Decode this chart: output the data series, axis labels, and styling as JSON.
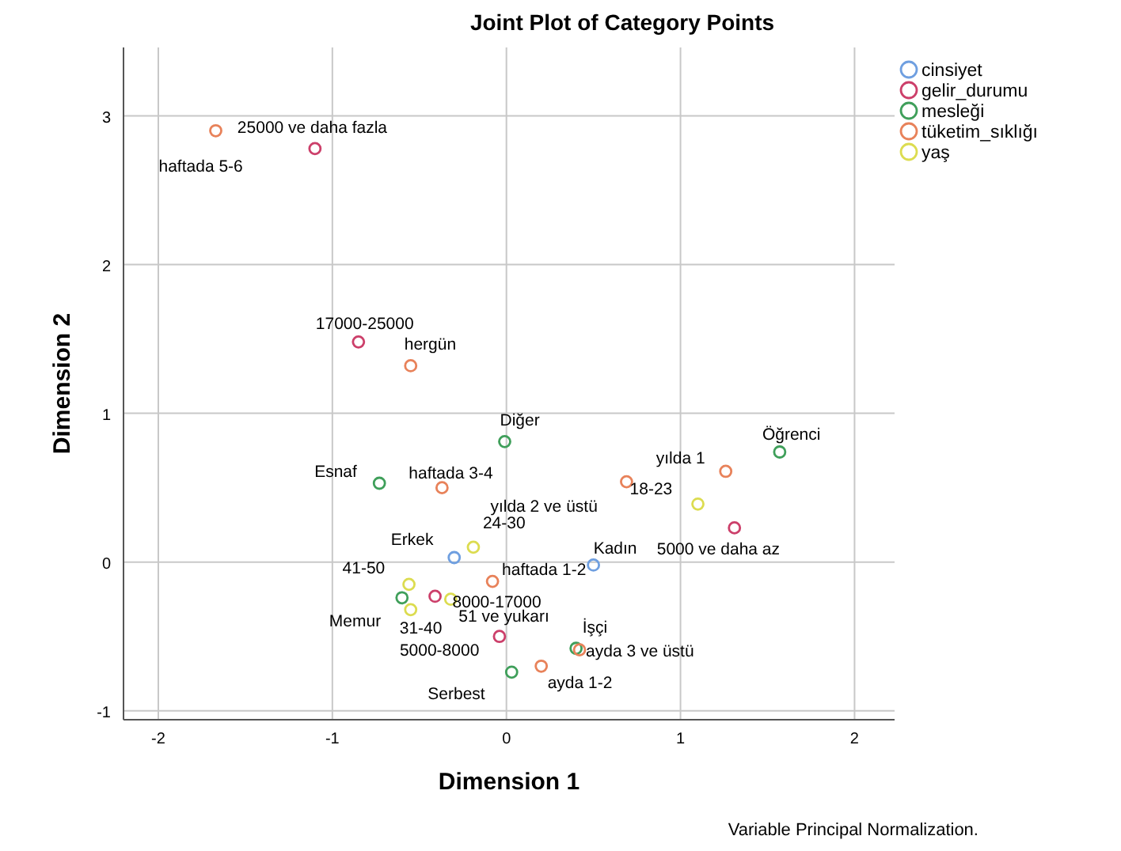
{
  "chart_data": {
    "type": "scatter",
    "title": "Joint Plot of Category Points",
    "xlabel": "Dimension 1",
    "ylabel": "Dimension 2",
    "xlim": [
      -2.2,
      2.23
    ],
    "ylim": [
      -1.06,
      3.46
    ],
    "xticks": [
      -2,
      -1,
      0,
      1,
      2
    ],
    "yticks": [
      -1,
      0,
      1,
      2,
      3
    ],
    "grid": true,
    "legend": "top right",
    "marker": "circle",
    "series": [
      {
        "name": "cinsiyet",
        "color": "#6f9fe0",
        "x": [
          -0.3,
          0.5
        ],
        "values": [
          0.03,
          -0.02
        ]
      },
      {
        "name": "gelir_durumu",
        "color": "#cc3f6a",
        "x": [
          -1.1,
          -0.85,
          1.31,
          -0.41,
          -0.04
        ],
        "values": [
          2.78,
          1.48,
          0.23,
          -0.23,
          -0.5
        ]
      },
      {
        "name": "mesleği",
        "color": "#3f9f5a",
        "x": [
          -0.01,
          -0.73,
          1.57,
          -0.6,
          0.4,
          0.03
        ],
        "values": [
          0.81,
          0.53,
          0.74,
          -0.24,
          -0.58,
          -0.74
        ]
      },
      {
        "name": "tüketim_sıklığı",
        "color": "#e8825a",
        "x": [
          -1.67,
          -0.55,
          -0.37,
          0.69,
          1.26,
          -0.08,
          0.42,
          0.2
        ],
        "values": [
          2.9,
          1.32,
          0.5,
          0.54,
          0.61,
          -0.13,
          -0.59,
          -0.7
        ]
      },
      {
        "name": "yaş",
        "color": "#dcdc50",
        "x": [
          1.1,
          -0.19,
          -0.56,
          -0.55,
          -0.32
        ],
        "values": [
          0.39,
          0.1,
          -0.15,
          -0.32,
          -0.25
        ]
      }
    ],
    "annotations": [
      {
        "text": "25000 ve daha fazla",
        "x": -1.1,
        "y": 2.78
      },
      {
        "text": "haftada 5-6",
        "x": -1.67,
        "y": 2.9
      },
      {
        "text": "17000-25000",
        "x": -0.85,
        "y": 1.48
      },
      {
        "text": "hergün",
        "x": -0.55,
        "y": 1.32
      },
      {
        "text": "Diğer",
        "x": -0.01,
        "y": 0.81
      },
      {
        "text": "Esnaf",
        "x": -0.73,
        "y": 0.53
      },
      {
        "text": "haftada 3-4",
        "x": -0.37,
        "y": 0.5
      },
      {
        "text": "yılda 2 ve üstü",
        "x": 0.69,
        "y": 0.54
      },
      {
        "text": "yılda 1",
        "x": 1.26,
        "y": 0.61
      },
      {
        "text": "18-23",
        "x": 1.1,
        "y": 0.39
      },
      {
        "text": "Öğrenci",
        "x": 1.57,
        "y": 0.74
      },
      {
        "text": "5000 ve daha az",
        "x": 1.31,
        "y": 0.23
      },
      {
        "text": "Kadın",
        "x": 0.5,
        "y": -0.02
      },
      {
        "text": "haftada 1-2",
        "x": -0.08,
        "y": -0.13
      },
      {
        "text": "Erkek",
        "x": -0.3,
        "y": 0.03
      },
      {
        "text": "24-30",
        "x": -0.19,
        "y": 0.1
      },
      {
        "text": "41-50",
        "x": -0.56,
        "y": -0.15
      },
      {
        "text": "Memur",
        "x": -0.6,
        "y": -0.24
      },
      {
        "text": "31-40",
        "x": -0.55,
        "y": -0.32
      },
      {
        "text": "8000-17000",
        "x": -0.41,
        "y": -0.23
      },
      {
        "text": "51 ve yukarı",
        "x": -0.32,
        "y": -0.25
      },
      {
        "text": "5000-8000",
        "x": -0.04,
        "y": -0.5
      },
      {
        "text": "İşçi",
        "x": 0.4,
        "y": -0.58
      },
      {
        "text": "ayda 3 ve üstü",
        "x": 0.42,
        "y": -0.59
      },
      {
        "text": "ayda 1-2",
        "x": 0.2,
        "y": -0.7
      },
      {
        "text": "Serbest",
        "x": 0.03,
        "y": -0.74
      },
      "Variable Principal Normalization."
    ]
  }
}
